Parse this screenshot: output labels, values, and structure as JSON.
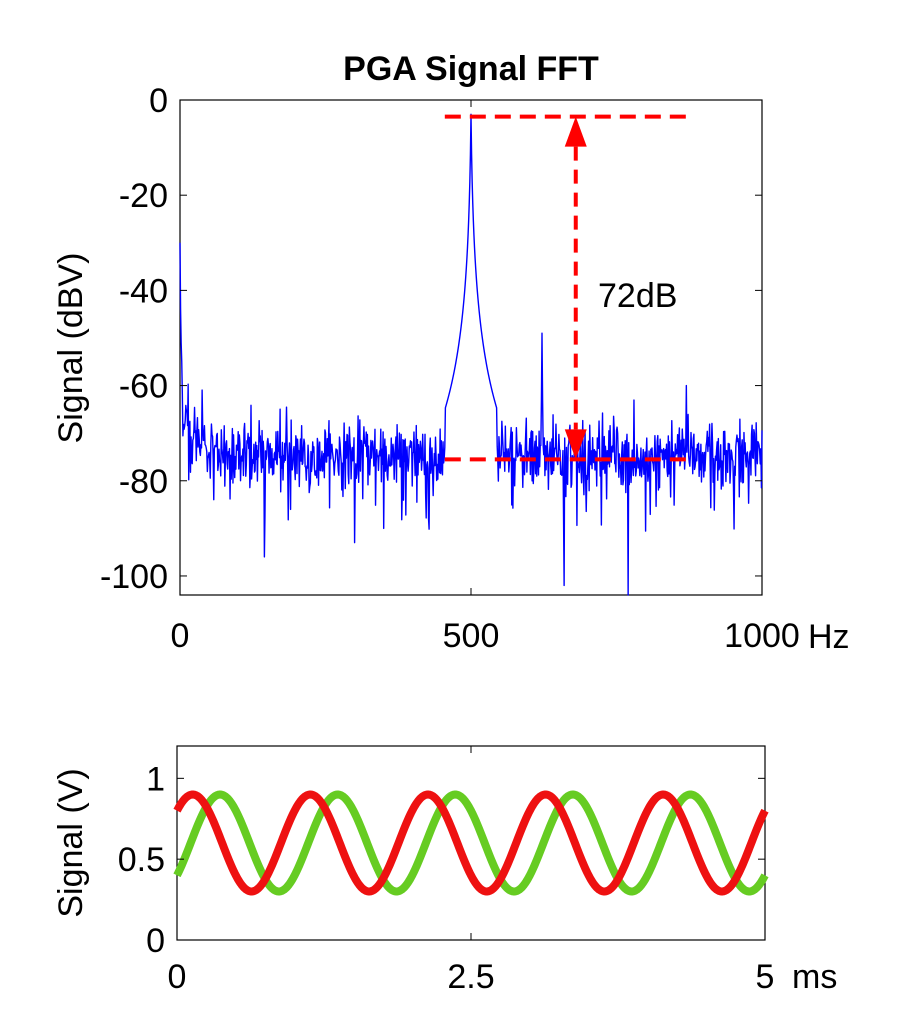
{
  "chart_data": [
    {
      "type": "line",
      "title": "PGA Signal FFT",
      "xlabel": "",
      "x_unit": "Hz",
      "ylabel": "Signal (dBV)",
      "xlim": [
        0,
        1000
      ],
      "ylim": [
        -104,
        0
      ],
      "xticks": [
        0,
        500,
        1000
      ],
      "yticks": [
        0,
        -20,
        -40,
        -60,
        -80,
        -100
      ],
      "grid": false,
      "noise_floor_dbv": -75,
      "series": [
        {
          "color": "#0000ff",
          "approx_points": [
            {
              "x": 0,
              "y": -30
            },
            {
              "x": 4,
              "y": -55
            },
            {
              "x": 10,
              "y": -62
            },
            {
              "x": 30,
              "y": -67
            },
            {
              "x": 60,
              "y": -71
            },
            {
              "x": 100,
              "y": -73
            },
            {
              "x": 145,
              "y": -96
            },
            {
              "x": 300,
              "y": -93
            },
            {
              "x": 350,
              "y": -90
            },
            {
              "x": 465,
              "y": -75
            },
            {
              "x": 485,
              "y": -62
            },
            {
              "x": 495,
              "y": -28
            },
            {
              "x": 500,
              "y": -3
            },
            {
              "x": 505,
              "y": -20
            },
            {
              "x": 515,
              "y": -62
            },
            {
              "x": 540,
              "y": -73
            },
            {
              "x": 622,
              "y": -49
            },
            {
              "x": 660,
              "y": -102
            },
            {
              "x": 770,
              "y": -104
            },
            {
              "x": 870,
              "y": -60
            },
            {
              "x": 1000,
              "y": -75
            }
          ]
        }
      ],
      "annotations": [
        {
          "type": "hline",
          "y": -3.5,
          "x_range": [
            455,
            875
          ],
          "color": "#ff0000",
          "style": "dashed"
        },
        {
          "type": "hline",
          "y": -75.5,
          "x_range": [
            455,
            875
          ],
          "color": "#ff0000",
          "style": "dashed"
        },
        {
          "type": "double-arrow",
          "x": 680,
          "y_range": [
            -75.5,
            -3.5
          ],
          "color": "#ff0000",
          "style": "dashed"
        },
        {
          "type": "text",
          "text": "72dB",
          "x": 720,
          "y": -40
        }
      ]
    },
    {
      "type": "line",
      "title": "",
      "xlabel": "",
      "x_unit": "ms",
      "ylabel": "Signal (V)",
      "xlim": [
        0,
        5
      ],
      "ylim": [
        0,
        1.2
      ],
      "xticks": [
        0,
        2.5,
        5
      ],
      "xtick_labels": [
        "0",
        "2.5",
        "5"
      ],
      "yticks": [
        0,
        0.5,
        1
      ],
      "grid": false,
      "series": [
        {
          "color": "#66cc22",
          "function": "0.6 - 0.3*sin(2*pi*f*t + phase)",
          "frequency_khz": 1,
          "offset": 0.6,
          "amplitude": 0.3,
          "value_at_0": 0.4,
          "peak_at_ms": 1.28
        },
        {
          "color": "#ee1111",
          "function": "0.6 + 0.3*sin(2*pi*f*t + phase)",
          "frequency_khz": 1,
          "offset": 0.6,
          "amplitude": 0.3,
          "value_at_0": 0.8,
          "peak_at_ms": 0.28
        }
      ]
    }
  ]
}
